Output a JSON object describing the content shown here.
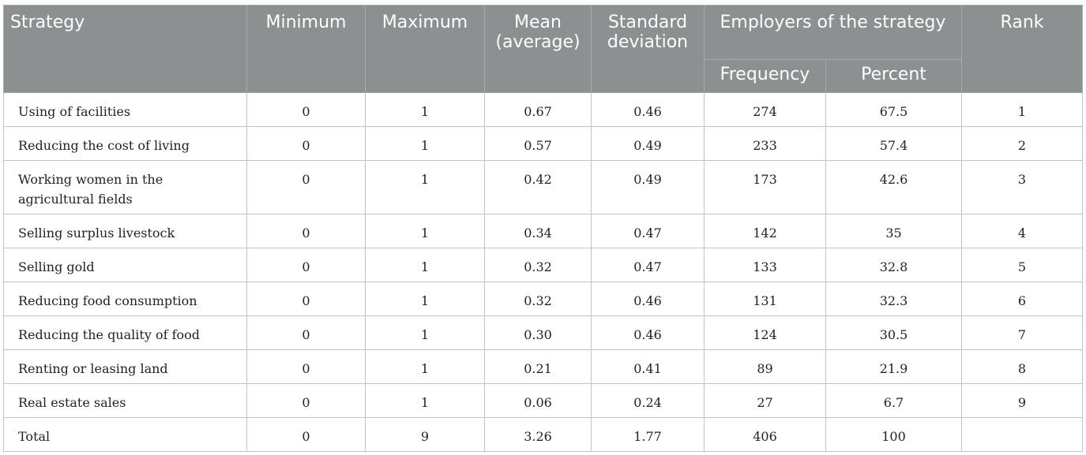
{
  "table": {
    "headers": {
      "strategy": "Strategy",
      "minimum": "Minimum",
      "maximum": "Maximum",
      "mean": "Mean (average)",
      "sd": "Standard deviation",
      "employers": "Employers of the strategy",
      "frequency": "Frequency",
      "percent": "Percent",
      "rank": "Rank"
    },
    "rows": [
      {
        "strategy": "Using of facilities",
        "min": "0",
        "max": "1",
        "mean": "0.67",
        "sd": "0.46",
        "freq": "274",
        "pct": "67.5",
        "rank": "1"
      },
      {
        "strategy": "Reducing the cost of living",
        "min": "0",
        "max": "1",
        "mean": "0.57",
        "sd": "0.49",
        "freq": "233",
        "pct": "57.4",
        "rank": "2"
      },
      {
        "strategy": "Working women in the agricultural fields",
        "min": "0",
        "max": "1",
        "mean": "0.42",
        "sd": "0.49",
        "freq": "173",
        "pct": "42.6",
        "rank": "3"
      },
      {
        "strategy": "Selling surplus livestock",
        "min": "0",
        "max": "1",
        "mean": "0.34",
        "sd": "0.47",
        "freq": "142",
        "pct": "35",
        "rank": "4"
      },
      {
        "strategy": "Selling gold",
        "min": "0",
        "max": "1",
        "mean": "0.32",
        "sd": "0.47",
        "freq": "133",
        "pct": "32.8",
        "rank": "5"
      },
      {
        "strategy": "Reducing food consumption",
        "min": "0",
        "max": "1",
        "mean": "0.32",
        "sd": "0.46",
        "freq": "131",
        "pct": "32.3",
        "rank": "6"
      },
      {
        "strategy": "Reducing the quality of food",
        "min": "0",
        "max": "1",
        "mean": "0.30",
        "sd": "0.46",
        "freq": "124",
        "pct": "30.5",
        "rank": "7"
      },
      {
        "strategy": "Renting or leasing land",
        "min": "0",
        "max": "1",
        "mean": "0.21",
        "sd": "0.41",
        "freq": "89",
        "pct": "21.9",
        "rank": "8"
      },
      {
        "strategy": "Real estate sales",
        "min": "0",
        "max": "1",
        "mean": "0.06",
        "sd": "0.24",
        "freq": "27",
        "pct": "6.7",
        "rank": "9"
      },
      {
        "strategy": "Total",
        "min": "0",
        "max": "9",
        "mean": "3.26",
        "sd": "1.77",
        "freq": "406",
        "pct": "100",
        "rank": ""
      }
    ]
  }
}
